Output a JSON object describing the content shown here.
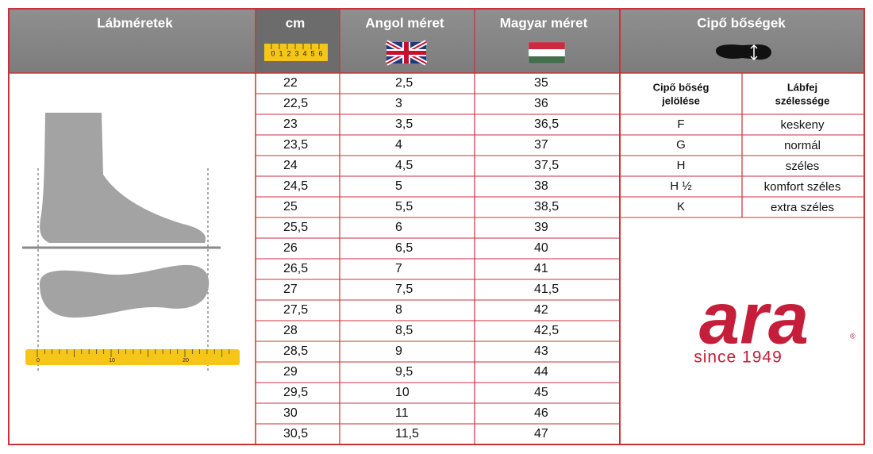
{
  "header": {
    "foot": "Lábméretek",
    "cm": "cm",
    "uk": "Angol méret",
    "hu": "Magyar méret",
    "widths": "Cipő bőségek",
    "cm_ruler_digits": [
      "0",
      "1",
      "2",
      "3",
      "4",
      "5",
      "6"
    ]
  },
  "foot_ruler_labels": [
    "0",
    "10",
    "20"
  ],
  "size_table": {
    "rows": [
      [
        "22",
        "2,5",
        "35"
      ],
      [
        "22,5",
        "3",
        "36"
      ],
      [
        "23",
        "3,5",
        "36,5"
      ],
      [
        "23,5",
        "4",
        "37"
      ],
      [
        "24",
        "4,5",
        "37,5"
      ],
      [
        "24,5",
        "5",
        "38"
      ],
      [
        "25",
        "5,5",
        "38,5"
      ],
      [
        "25,5",
        "6",
        "39"
      ],
      [
        "26",
        "6,5",
        "40"
      ],
      [
        "26,5",
        "7",
        "41"
      ],
      [
        "27",
        "7,5",
        "41,5"
      ],
      [
        "27,5",
        "8",
        "42"
      ],
      [
        "28",
        "8,5",
        "42,5"
      ],
      [
        "28,5",
        "9",
        "43"
      ],
      [
        "29",
        "9,5",
        "44"
      ],
      [
        "29,5",
        "10",
        "45"
      ],
      [
        "30",
        "11",
        "46"
      ],
      [
        "30,5",
        "11,5",
        "47"
      ]
    ]
  },
  "width_table": {
    "columns": [
      [
        "Cipő bőség",
        "jelölése"
      ],
      [
        "Lábfej",
        "szélessége"
      ]
    ],
    "rows": [
      [
        "F",
        "keskeny"
      ],
      [
        "G",
        "normál"
      ],
      [
        "H",
        "széles"
      ],
      [
        "H ½",
        "komfort széles"
      ],
      [
        "K",
        "extra széles"
      ]
    ]
  },
  "logo": {
    "brand": "ara",
    "registered": "®",
    "tagline": "since 1949"
  }
}
